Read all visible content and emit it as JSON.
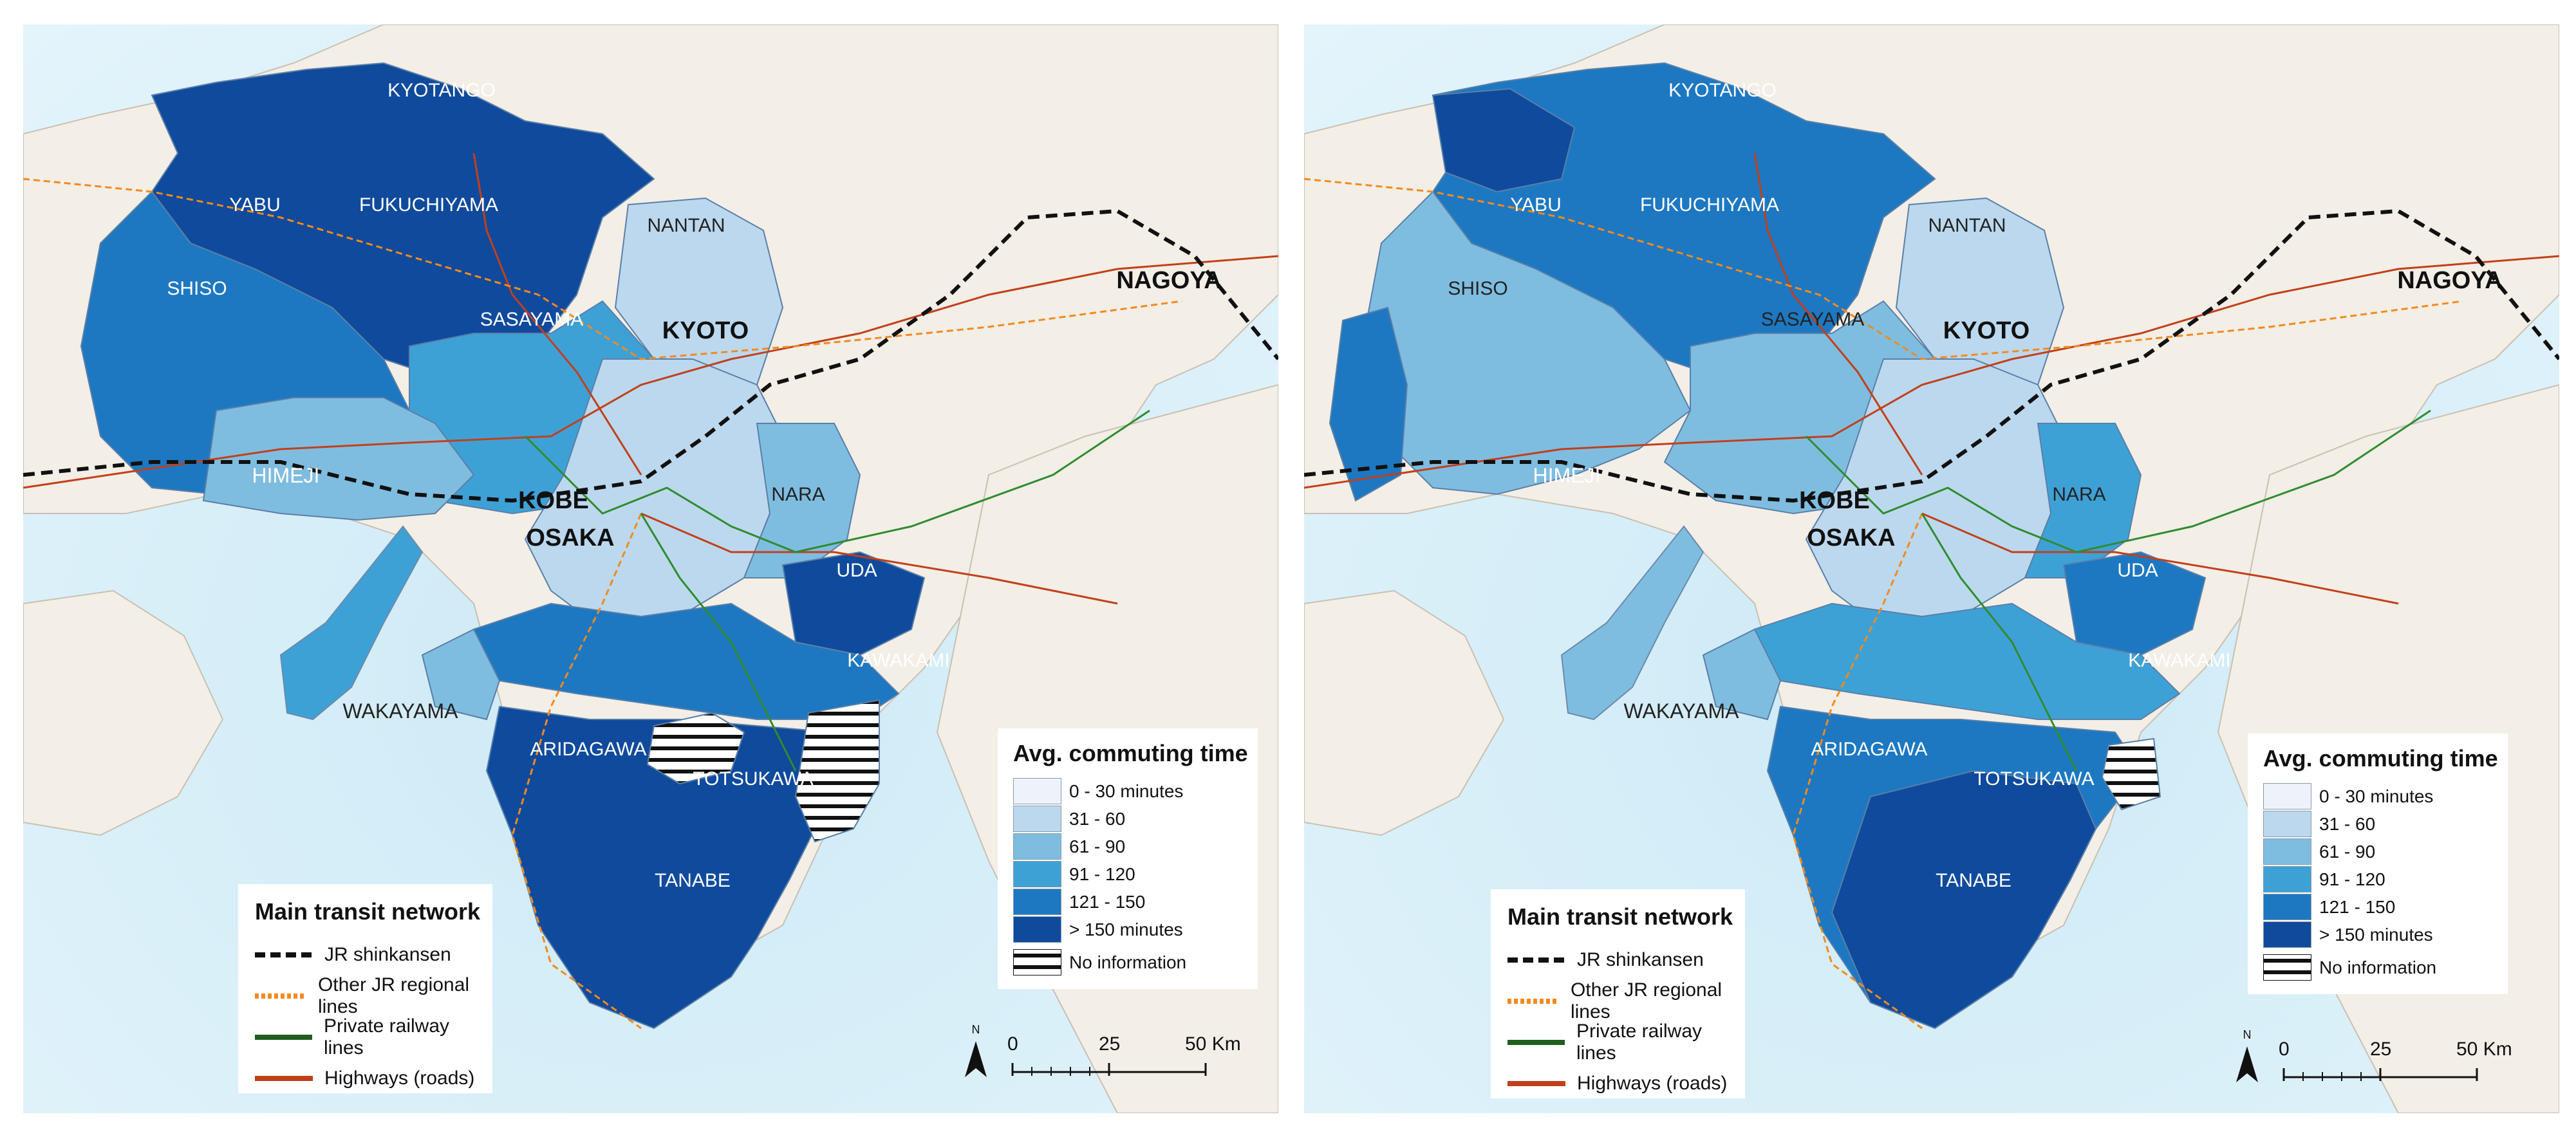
{
  "panels": [
    {
      "id": "left"
    },
    {
      "id": "right"
    }
  ],
  "places": {
    "kyotango": "KYOTANGO",
    "yabu": "YABU",
    "fukuchiyama": "FUKUCHIYAMA",
    "nantan": "NANTAN",
    "shiso": "SHISO",
    "sasayama": "SASAYAMA",
    "kyoto": "KYOTO",
    "nagoya": "NAGOYA",
    "himeji": "HIMEJI",
    "kobe": "KOBE",
    "osaka": "OSAKA",
    "nara": "NARA",
    "uda": "UDA",
    "kawakami": "KAWAKAMI",
    "wakayama": "WAKAYAMA",
    "aridagawa": "ARIDAGAWA",
    "totsukawa": "TOTSUKAWA",
    "tanabe": "TANABE"
  },
  "transit_legend": {
    "title": "Main transit network",
    "items": [
      {
        "label": "JR shinkansen",
        "style": "dashed",
        "color": "#111111"
      },
      {
        "label": "Other JR regional lines",
        "style": "dotted",
        "color": "#f28a1e"
      },
      {
        "label": "Private railway lines",
        "style": "solid",
        "color": "#1f5e1f"
      },
      {
        "label": "Highways (roads)",
        "style": "solid",
        "color": "#c1401a"
      }
    ]
  },
  "commute_legend": {
    "title": "Avg. commuting time",
    "items": [
      {
        "label": "0 - 30 minutes",
        "color": "#eef3fb"
      },
      {
        "label": "31 - 60",
        "color": "#bcd8ee"
      },
      {
        "label": "61 - 90",
        "color": "#7fbde0"
      },
      {
        "label": "91 - 120",
        "color": "#3ea1d6"
      },
      {
        "label": "121 - 150",
        "color": "#1d78c1"
      },
      {
        "label": "> 150 minutes",
        "color": "#0f4a9c"
      },
      {
        "label": "No information",
        "color": "hatch"
      }
    ]
  },
  "scale_bar": {
    "north": "N",
    "ticks": [
      "0",
      "25",
      "50 Km"
    ]
  },
  "colors": {
    "sea": "#d6eef8",
    "land": "#f3eee6",
    "dark": "#0f4a9c",
    "mid": "#1d78c1",
    "med": "#3ea1d6",
    "light": "#7fbde0",
    "pale": "#bcd8ee"
  }
}
